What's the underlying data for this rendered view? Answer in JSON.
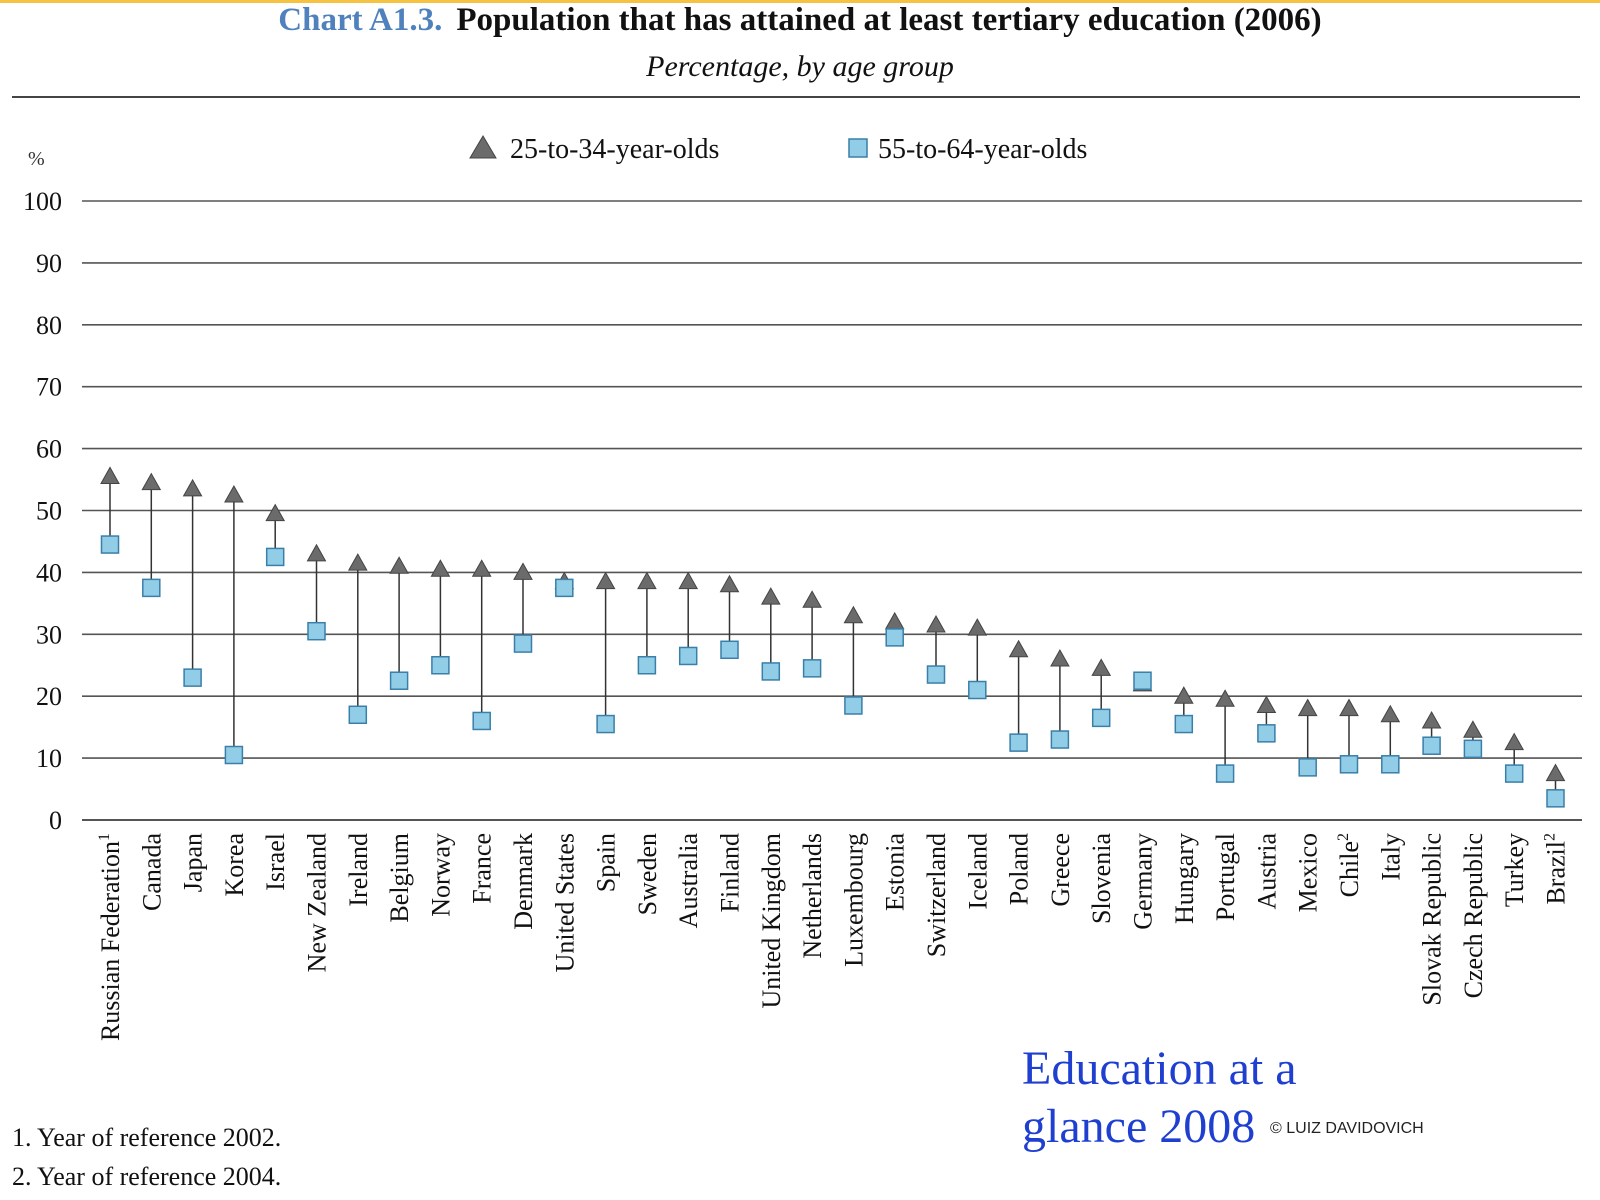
{
  "header": {
    "label": "Chart A1.3.",
    "title": "Population that has attained at least tertiary education (2006)",
    "subtitle": "Percentage, by age group"
  },
  "chart_data": {
    "type": "scatter",
    "title": "Population that has attained at least tertiary education (2006)",
    "subtitle": "Percentage, by age group",
    "ylabel": "%",
    "xlabel": "",
    "ylim": [
      0,
      100
    ],
    "yticks": [
      0,
      10,
      20,
      30,
      40,
      50,
      60,
      70,
      80,
      90,
      100
    ],
    "grid": true,
    "legend_position": "top",
    "categories": [
      {
        "name": "Russian Federation",
        "sup": "1"
      },
      {
        "name": "Canada",
        "sup": ""
      },
      {
        "name": "Japan",
        "sup": ""
      },
      {
        "name": "Korea",
        "sup": ""
      },
      {
        "name": "Israel",
        "sup": ""
      },
      {
        "name": "New Zealand",
        "sup": ""
      },
      {
        "name": "Ireland",
        "sup": ""
      },
      {
        "name": "Belgium",
        "sup": ""
      },
      {
        "name": "Norway",
        "sup": ""
      },
      {
        "name": "France",
        "sup": ""
      },
      {
        "name": "Denmark",
        "sup": ""
      },
      {
        "name": "United States",
        "sup": ""
      },
      {
        "name": "Spain",
        "sup": ""
      },
      {
        "name": "Sweden",
        "sup": ""
      },
      {
        "name": "Australia",
        "sup": ""
      },
      {
        "name": "Finland",
        "sup": ""
      },
      {
        "name": "United Kingdom",
        "sup": ""
      },
      {
        "name": "Netherlands",
        "sup": ""
      },
      {
        "name": "Luxembourg",
        "sup": ""
      },
      {
        "name": "Estonia",
        "sup": ""
      },
      {
        "name": "Switzerland",
        "sup": ""
      },
      {
        "name": "Iceland",
        "sup": ""
      },
      {
        "name": "Poland",
        "sup": ""
      },
      {
        "name": "Greece",
        "sup": ""
      },
      {
        "name": "Slovenia",
        "sup": ""
      },
      {
        "name": "Germany",
        "sup": ""
      },
      {
        "name": "Hungary",
        "sup": ""
      },
      {
        "name": "Portugal",
        "sup": ""
      },
      {
        "name": "Austria",
        "sup": ""
      },
      {
        "name": "Mexico",
        "sup": ""
      },
      {
        "name": "Chile",
        "sup": "2"
      },
      {
        "name": "Italy",
        "sup": ""
      },
      {
        "name": "Slovak Republic",
        "sup": ""
      },
      {
        "name": "Czech Republic",
        "sup": ""
      },
      {
        "name": "Turkey",
        "sup": ""
      },
      {
        "name": "Brazil",
        "sup": "2"
      }
    ],
    "series": [
      {
        "name": "25-to-34-year-olds",
        "marker": "triangle",
        "color": "#6b6b6b",
        "values": [
          55.5,
          54.5,
          53.5,
          52.5,
          49.5,
          43,
          41.5,
          41,
          40.5,
          40.5,
          40,
          38.5,
          38.5,
          38.5,
          38.5,
          38,
          36,
          35.5,
          33,
          32,
          31.5,
          31,
          27.5,
          26,
          24.5,
          22,
          20,
          19.5,
          18.5,
          18,
          18,
          17,
          16,
          14.5,
          12.5,
          7.5
        ]
      },
      {
        "name": "55-to-64-year-olds",
        "marker": "square",
        "color": "#92cde8",
        "values": [
          44.5,
          37.5,
          23,
          10.5,
          42.5,
          30.5,
          17,
          22.5,
          25,
          16,
          28.5,
          37.5,
          15.5,
          25,
          26.5,
          27.5,
          24,
          24.5,
          18.5,
          29.5,
          23.5,
          21,
          12.5,
          13,
          16.5,
          22.5,
          15.5,
          7.5,
          14,
          8.5,
          9,
          9,
          12,
          11.5,
          7.5,
          3.5
        ]
      }
    ]
  },
  "footnotes": [
    "1. Year of reference 2002.",
    "2. Year of reference 2004."
  ],
  "watermark": {
    "line1": "Education at a",
    "line2": "glance 2008"
  },
  "copyright": "© LUIZ DAVIDOVICH"
}
